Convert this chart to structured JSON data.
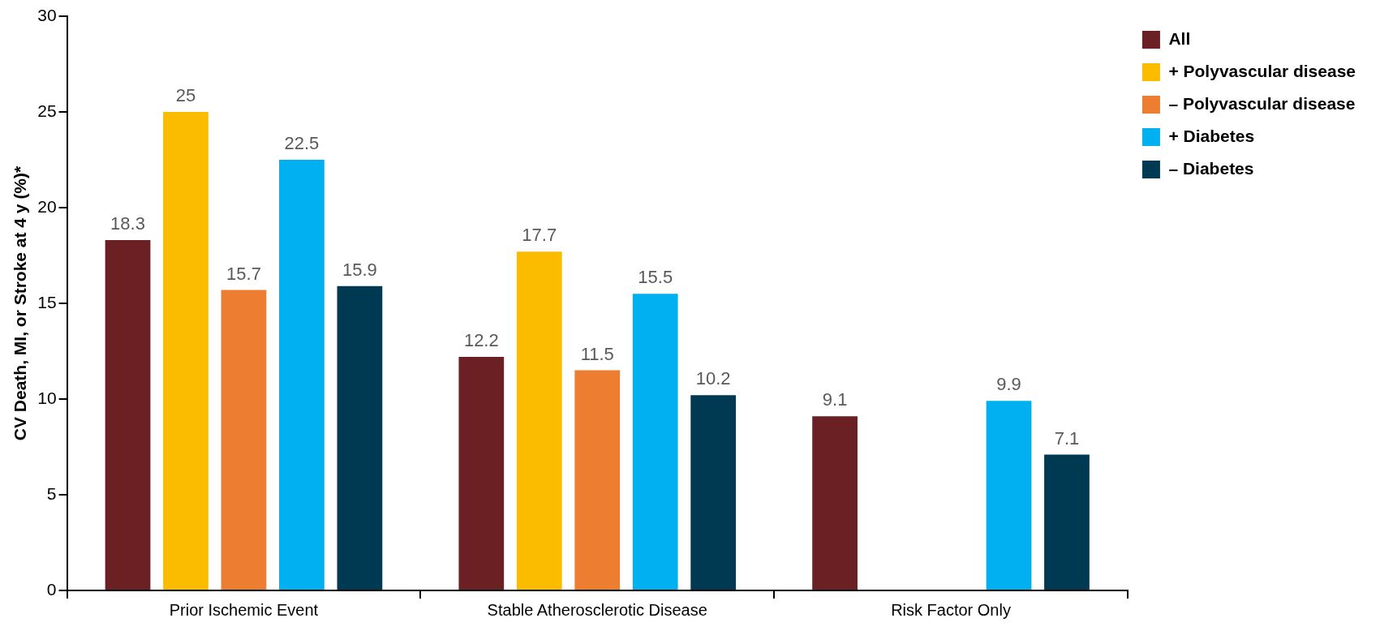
{
  "chart_data": {
    "type": "bar",
    "ylabel": "CV Death, MI, or Stroke at 4 y (%)*",
    "categories": [
      "Prior Ischemic Event",
      "Stable Atherosclerotic Disease",
      "Risk Factor Only"
    ],
    "series": [
      {
        "name": "All",
        "color": "#6b2024",
        "values": [
          18.3,
          12.2,
          9.1
        ]
      },
      {
        "name": "+ Polyvascular disease",
        "color": "#fbbc00",
        "values": [
          25,
          17.7,
          null
        ]
      },
      {
        "name": "– Polyvascular disease",
        "color": "#ed7d31",
        "values": [
          15.7,
          11.5,
          null
        ]
      },
      {
        "name": "+ Diabetes",
        "color": "#00b0f0",
        "values": [
          22.5,
          15.5,
          9.9
        ]
      },
      {
        "name": "– Diabetes",
        "color": "#003a52",
        "values": [
          15.9,
          10.2,
          7.1
        ]
      }
    ],
    "ylim": [
      0,
      30
    ],
    "yticks": [
      0,
      5,
      10,
      15,
      20,
      25,
      30
    ],
    "grid": false,
    "legend": "top right",
    "data_labels": true
  }
}
